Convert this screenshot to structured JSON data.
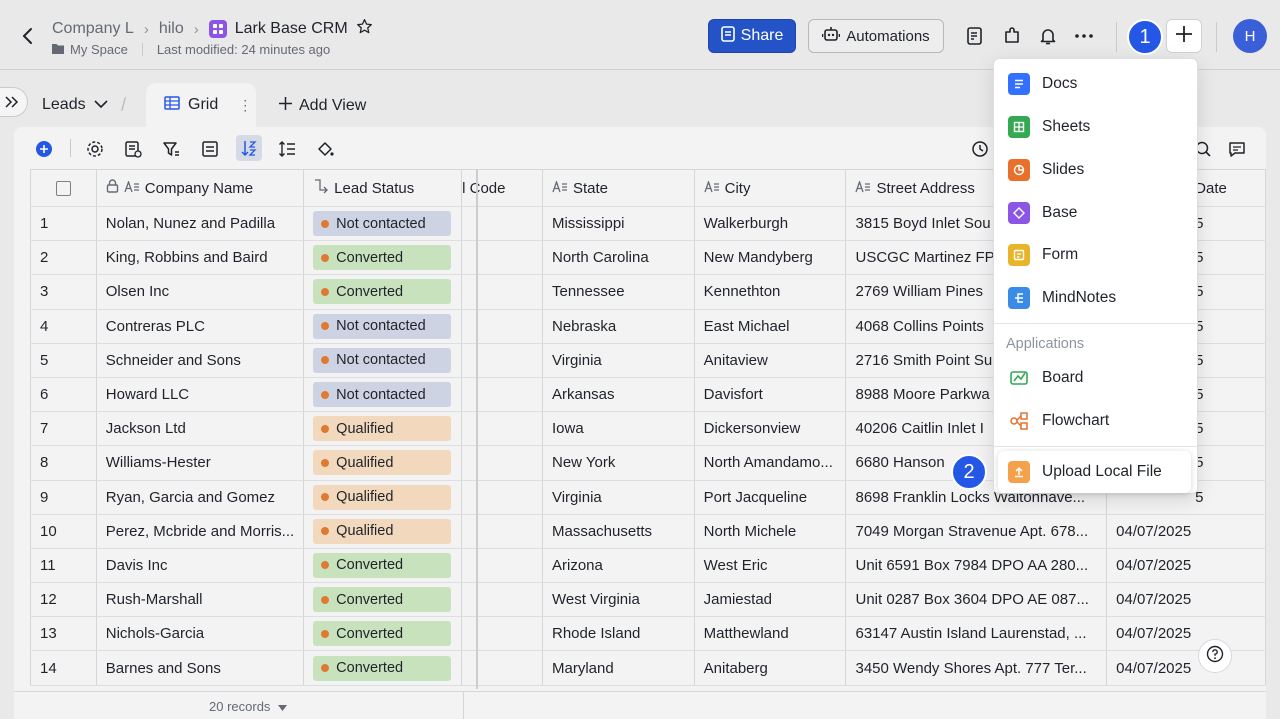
{
  "header": {
    "breadcrumbs": [
      "Company L",
      "hilo",
      "Lark Base CRM"
    ],
    "location": "My Space",
    "last_modified": "Last modified: 24 minutes ago",
    "share_label": "Share",
    "automations_label": "Automations",
    "avatar_initial": "H"
  },
  "annotations": {
    "step1": "1",
    "step2": "2"
  },
  "views": {
    "table_name": "Leads",
    "active_view": "Grid",
    "add_view_label": "Add View"
  },
  "grid": {
    "columns": [
      "Company Name",
      "Lead Status",
      "l Code",
      "State",
      "City",
      "Street Address",
      "Date"
    ],
    "rows": [
      {
        "n": "1",
        "company": "Nolan, Nunez and Padilla",
        "status": "Not contacted",
        "state": "Mississippi",
        "city": "Walkerburgh",
        "street": "3815 Boyd Inlet Sou",
        "date": "5"
      },
      {
        "n": "2",
        "company": "King, Robbins and Baird",
        "status": "Converted",
        "state": "North Carolina",
        "city": "New Mandyberg",
        "street": "USCGC Martinez FP",
        "date": "5"
      },
      {
        "n": "3",
        "company": "Olsen Inc",
        "status": "Converted",
        "state": "Tennessee",
        "city": "Kennethton",
        "street": "2769 William Pines",
        "date": "5"
      },
      {
        "n": "4",
        "company": "Contreras PLC",
        "status": "Not contacted",
        "state": "Nebraska",
        "city": "East Michael",
        "street": "4068 Collins Points",
        "date": "5"
      },
      {
        "n": "5",
        "company": "Schneider and Sons",
        "status": "Not contacted",
        "state": "Virginia",
        "city": "Anitaview",
        "street": "2716 Smith Point Su",
        "date": "5"
      },
      {
        "n": "6",
        "company": "Howard LLC",
        "status": "Not contacted",
        "state": "Arkansas",
        "city": "Davisfort",
        "street": "8988 Moore Parkwa",
        "date": "5"
      },
      {
        "n": "7",
        "company": "Jackson Ltd",
        "status": "Qualified",
        "state": "Iowa",
        "city": "Dickersonview",
        "street": "40206 Caitlin Inlet I",
        "date": "5"
      },
      {
        "n": "8",
        "company": "Williams-Hester",
        "status": "Qualified",
        "state": "New York",
        "city": "North Amandamo...",
        "street": "6680 Hanson",
        "date": "5"
      },
      {
        "n": "9",
        "company": "Ryan, Garcia and Gomez",
        "status": "Qualified",
        "state": "Virginia",
        "city": "Port Jacqueline",
        "street": "8698 Franklin Locks Waltonhave...",
        "date": "5"
      },
      {
        "n": "10",
        "company": "Perez, Mcbride and Morris...",
        "status": "Qualified",
        "state": "Massachusetts",
        "city": "North Michele",
        "street": "7049 Morgan Stravenue Apt. 678...",
        "date": "04/07/2025"
      },
      {
        "n": "11",
        "company": "Davis Inc",
        "status": "Converted",
        "state": "Arizona",
        "city": "West Eric",
        "street": "Unit 6591 Box 7984 DPO AA 280...",
        "date": "04/07/2025"
      },
      {
        "n": "12",
        "company": "Rush-Marshall",
        "status": "Converted",
        "state": "West Virginia",
        "city": "Jamiestad",
        "street": "Unit 0287 Box 3604 DPO AE 087...",
        "date": "04/07/2025"
      },
      {
        "n": "13",
        "company": "Nichols-Garcia",
        "status": "Converted",
        "state": "Rhode Island",
        "city": "Matthewland",
        "street": "63147 Austin Island Laurenstad, ...",
        "date": "04/07/2025"
      },
      {
        "n": "14",
        "company": "Barnes and Sons",
        "status": "Converted",
        "state": "Maryland",
        "city": "Anitaberg",
        "street": "3450 Wendy Shores Apt. 777 Ter...",
        "date": "04/07/2025"
      }
    ],
    "record_count": "20 records"
  },
  "status_colors": {
    "Not contacted": "#cdd3e2",
    "Converted": "#c9e2be",
    "Qualified": "#f2d9bd"
  },
  "menu": {
    "items": [
      {
        "label": "Docs",
        "icon": "docs-icon",
        "color": "#3370ff"
      },
      {
        "label": "Sheets",
        "icon": "sheets-icon",
        "color": "#34a853"
      },
      {
        "label": "Slides",
        "icon": "slides-icon",
        "color": "#e8702a"
      },
      {
        "label": "Base",
        "icon": "base-icon",
        "color": "#8c55e6"
      },
      {
        "label": "Form",
        "icon": "form-icon",
        "color": "#e8b52a"
      },
      {
        "label": "MindNotes",
        "icon": "mindnotes-icon",
        "color": "#3a8be6"
      }
    ],
    "applications_heading": "Applications",
    "apps": [
      {
        "label": "Board",
        "icon": "board-icon"
      },
      {
        "label": "Flowchart",
        "icon": "flowchart-icon"
      }
    ],
    "upload_label": "Upload Local File"
  }
}
